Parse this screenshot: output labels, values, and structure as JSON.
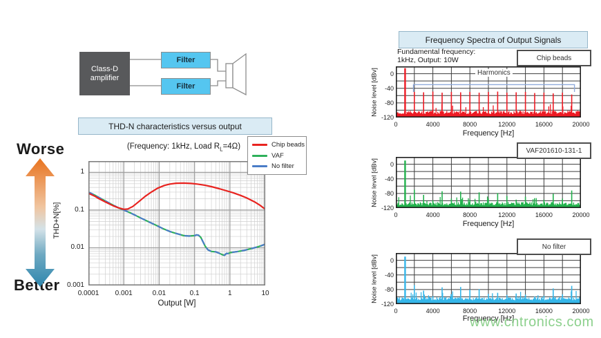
{
  "diagram": {
    "amplifier_line1": "Class-D",
    "amplifier_line2": "amplifier",
    "filter_top_label": "Filter",
    "filter_bottom_label": "Filter"
  },
  "left_panel": {
    "title": "THD-N characteristics versus output",
    "subtitle_prefix": "(Frequency: 1kHz, Load R",
    "subtitle_sub": "L",
    "subtitle_suffix": "=4Ω)",
    "worse_label": "Worse",
    "better_label": "Better",
    "worse_color": "#e8731f",
    "better_color": "#2e86ad"
  },
  "right_panel": {
    "title": "Frequency Spectra of Output Signals",
    "condition_line1": "Fundamental frequency:",
    "condition_line2": "1kHz, Output: 10W",
    "harmonics_annotation": "Harmonics"
  },
  "watermark": "www.cntronics.com",
  "chart_data": [
    {
      "type": "line",
      "title": "THD-N characteristics versus output",
      "xlabel": "Output [W]",
      "ylabel": "THD+N[%]",
      "xscale": "log",
      "yscale": "log",
      "xlim": [
        0.0001,
        10
      ],
      "ylim": [
        0.001,
        2
      ],
      "xticks": [
        "0.0001",
        "0.001",
        "0.01",
        "0.1",
        "1",
        "10"
      ],
      "yticks": [
        "1",
        "0.1",
        "0.01",
        "0.001"
      ],
      "grid": true,
      "legend_position": "upper right",
      "series": [
        {
          "name": "Chip beads",
          "color": "#e8231f",
          "x": [
            0.0001,
            0.00015,
            0.0002,
            0.0003,
            0.0005,
            0.0007,
            0.001,
            0.0013,
            0.0018,
            0.0025,
            0.004,
            0.006,
            0.009,
            0.014,
            0.02,
            0.03,
            0.05,
            0.08,
            0.12,
            0.2,
            0.3,
            0.5,
            0.8,
            1.2,
            2,
            3,
            5,
            7,
            10
          ],
          "y": [
            0.28,
            0.235,
            0.2,
            0.165,
            0.13,
            0.115,
            0.105,
            0.107,
            0.125,
            0.16,
            0.23,
            0.3,
            0.38,
            0.45,
            0.49,
            0.515,
            0.52,
            0.51,
            0.49,
            0.455,
            0.42,
            0.37,
            0.325,
            0.29,
            0.245,
            0.21,
            0.165,
            0.135,
            0.105
          ]
        },
        {
          "name": "VAF",
          "color": "#2eb05a",
          "x": [
            0.0001,
            0.00015,
            0.0002,
            0.0003,
            0.0005,
            0.0007,
            0.001,
            0.0015,
            0.002,
            0.003,
            0.005,
            0.008,
            0.013,
            0.02,
            0.03,
            0.05,
            0.07,
            0.1,
            0.115,
            0.13,
            0.15,
            0.17,
            0.2,
            0.24,
            0.3,
            0.4,
            0.5,
            0.6,
            0.7,
            0.8,
            0.9,
            1,
            1.3,
            1.7,
            2.5,
            4,
            6,
            8,
            10
          ],
          "y": [
            0.3,
            0.25,
            0.215,
            0.175,
            0.135,
            0.115,
            0.1,
            0.085,
            0.075,
            0.062,
            0.049,
            0.04,
            0.032,
            0.027,
            0.024,
            0.021,
            0.0205,
            0.021,
            0.022,
            0.0215,
            0.019,
            0.015,
            0.011,
            0.0088,
            0.008,
            0.0078,
            0.0072,
            0.0066,
            0.0063,
            0.0071,
            0.007,
            0.0074,
            0.0077,
            0.008,
            0.0085,
            0.0095,
            0.0105,
            0.0115,
            0.0125
          ]
        },
        {
          "name": "No filter",
          "color": "#4a7cc7",
          "x": [
            0.0001,
            0.00015,
            0.0002,
            0.0003,
            0.0005,
            0.0007,
            0.001,
            0.0015,
            0.002,
            0.003,
            0.005,
            0.008,
            0.013,
            0.02,
            0.03,
            0.05,
            0.07,
            0.1,
            0.115,
            0.13,
            0.15,
            0.17,
            0.2,
            0.24,
            0.3,
            0.4,
            0.5,
            0.6,
            0.7,
            0.8,
            0.9,
            1,
            1.3,
            1.7,
            2.5,
            4,
            6,
            8,
            10
          ],
          "y": [
            0.3,
            0.25,
            0.215,
            0.175,
            0.135,
            0.115,
            0.1,
            0.085,
            0.075,
            0.062,
            0.049,
            0.04,
            0.032,
            0.027,
            0.024,
            0.021,
            0.0205,
            0.021,
            0.022,
            0.0215,
            0.019,
            0.015,
            0.011,
            0.0088,
            0.008,
            0.0078,
            0.0072,
            0.0066,
            0.0063,
            0.0071,
            0.007,
            0.0074,
            0.0077,
            0.008,
            0.0085,
            0.0095,
            0.0105,
            0.0115,
            0.0125
          ]
        }
      ]
    },
    {
      "type": "bar",
      "label": "Chip beads",
      "color": "#ed1b24",
      "ylabel": "Noise level [dBv]",
      "xlabel": "Frequency [Hz]",
      "ylim": [
        -120,
        20
      ],
      "xlim": [
        0,
        20000
      ],
      "yticks": [
        "0",
        "-40",
        "-80",
        "-120"
      ],
      "xticks": [
        "0",
        "4000",
        "8000",
        "12000",
        "16000",
        "20000"
      ],
      "fundamental_hz": 1000,
      "fundamental_dbv": 15,
      "harmonics_dbv": [
        -50,
        -51,
        -49,
        -52,
        -50,
        -51,
        -50,
        -52,
        -50,
        -49,
        -52,
        -51,
        -50,
        -53,
        -52,
        -54,
        -52,
        -57
      ],
      "noise_floor_dbv": -106,
      "annotation": "Harmonics",
      "bracket": {
        "start_hz": 1900,
        "end_hz": 19300,
        "level_dbv": -30,
        "tick_dbv": -50
      }
    },
    {
      "type": "bar",
      "label": "VAF201610-131-1",
      "color": "#22b14c",
      "ylabel": "Noise level [dBv]",
      "xlabel": "Frequency [Hz]",
      "ylim": [
        -120,
        20
      ],
      "xlim": [
        0,
        20000
      ],
      "yticks": [
        "0",
        "-40",
        "-80",
        "-120"
      ],
      "xticks": [
        "0",
        "4000",
        "8000",
        "12000",
        "16000",
        "20000"
      ],
      "fundamental_hz": 1000,
      "fundamental_dbv": 10,
      "harmonics_dbv": [
        -70,
        -84,
        -99,
        -74,
        -94,
        -75,
        -97,
        -77,
        -94,
        -79,
        -87,
        -97,
        -89,
        -93,
        -97,
        -81,
        -94,
        -72
      ],
      "noise_floor_dbv": -108
    },
    {
      "type": "bar",
      "label": "No filter",
      "color": "#35b6e9",
      "ylabel": "Noise level [dBv]",
      "xlabel": "Frequency [Hz]",
      "ylim": [
        -120,
        20
      ],
      "xlim": [
        0,
        20000
      ],
      "yticks": [
        "0",
        "-40",
        "-80",
        "-120"
      ],
      "xticks": [
        "0",
        "4000",
        "8000",
        "12000",
        "16000",
        "20000"
      ],
      "fundamental_hz": 1000,
      "fundamental_dbv": 10,
      "harmonics_dbv": [
        -68,
        -83,
        -98,
        -74,
        -93,
        -73,
        -80,
        -79,
        -92,
        -89,
        -95,
        -91,
        -94,
        -99,
        -97,
        -77,
        -93,
        -70
      ],
      "noise_floor_dbv": -105
    }
  ]
}
